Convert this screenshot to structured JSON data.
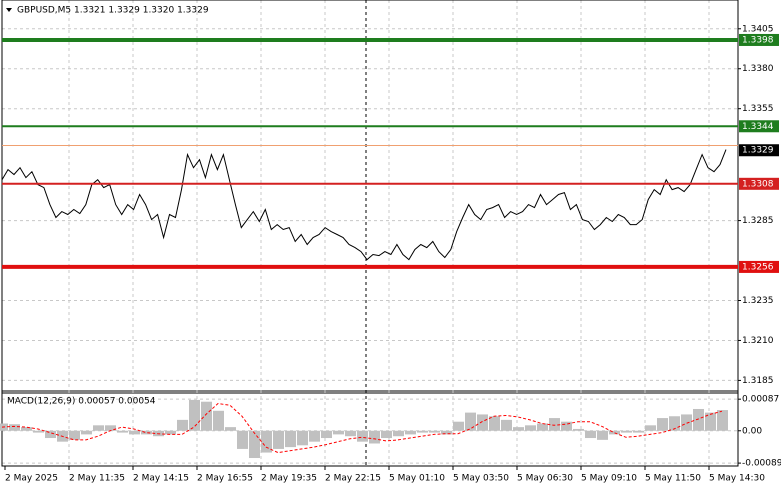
{
  "chart_data": [
    {
      "type": "line",
      "title": "GBPUSD,M5  1.3321 1.3329 1.3320 1.3329",
      "xtick_labels": [
        "2 May 2025",
        "2 May 11:35",
        "2 May 14:15",
        "2 May 16:55",
        "2 May 19:35",
        "2 May 22:15",
        "5 May 01:10",
        "5 May 03:50",
        "5 May 06:30",
        "5 May 09:10",
        "5 May 11:50",
        "5 May 14:30"
      ],
      "color": "#000000",
      "values": [
        1.33106,
        1.33169,
        1.33138,
        1.33181,
        1.33119,
        1.33156,
        1.33075,
        1.33056,
        1.3295,
        1.32869,
        1.32906,
        1.32888,
        1.32919,
        1.32894,
        1.3295,
        1.33075,
        1.33106,
        1.33056,
        1.33075,
        1.3295,
        1.32888,
        1.3295,
        1.32919,
        1.33013,
        1.3295,
        1.32856,
        1.32888,
        1.32744,
        1.32888,
        1.32869,
        1.33044,
        1.33263,
        1.33181,
        1.33231,
        1.33119,
        1.33263,
        1.33169,
        1.33263,
        1.33106,
        1.3295,
        1.32806,
        1.32856,
        1.32906,
        1.32844,
        1.32919,
        1.32794,
        1.32825,
        1.32794,
        1.32806,
        1.32719,
        1.32763,
        1.327,
        1.32744,
        1.32763,
        1.32806,
        1.32781,
        1.32763,
        1.32744,
        1.327,
        1.32681,
        1.32656,
        1.32606,
        1.32638,
        1.32631,
        1.32656,
        1.32638,
        1.327,
        1.32638,
        1.32606,
        1.32669,
        1.327,
        1.32681,
        1.32719,
        1.32656,
        1.32619,
        1.32669,
        1.32781,
        1.32869,
        1.3295,
        1.32888,
        1.32856,
        1.32919,
        1.32931,
        1.3295,
        1.32869,
        1.32906,
        1.32888,
        1.32906,
        1.3295,
        1.32931,
        1.33013,
        1.3295,
        1.32981,
        1.33013,
        1.33025,
        1.32919,
        1.3295,
        1.32856,
        1.32844,
        1.32794,
        1.32825,
        1.32869,
        1.32844,
        1.32888,
        1.32869,
        1.32825,
        1.32825,
        1.32856,
        1.32981,
        1.33044,
        1.33013,
        1.33106,
        1.33044,
        1.33056,
        1.33031,
        1.33075,
        1.33169,
        1.33263,
        1.33181,
        1.33156,
        1.332,
        1.33294
      ],
      "levels": [
        {
          "value": 1.3398,
          "color": "#1e7d1e"
        },
        {
          "value": 1.3344,
          "color": "#1e7d1e"
        },
        {
          "value": 1.3308,
          "color": "#d42020"
        },
        {
          "value": 1.3256,
          "color": "#e01010"
        }
      ],
      "ask_line": {
        "value": 1.3332,
        "color": "#f0a070"
      },
      "last_price": 1.3329,
      "ylim": [
        1.3179,
        1.3423
      ],
      "yticks": [
        1.3405,
        {
          "value": 1.338,
          "label": "1.3380"
        },
        1.3355,
        1.3285,
        1.3235,
        {
          "value": 1.321,
          "label": "1.3210"
        },
        1.3185
      ],
      "grid": true
    },
    {
      "type": "macd",
      "title": "MACD(12,26,9)  0.00057 0.00054",
      "series": [
        {
          "color": "#c0c0c0",
          "values": [
            0.0002,
            0.00018,
            0.0001,
            -5e-05,
            -0.0002,
            -0.0003,
            -0.00025,
            -0.0001,
            0.00015,
            0.00015,
            -5e-05,
            -0.0001,
            -0.0001,
            -0.00015,
            -0.0001,
            0.0003,
            0.00085,
            0.0008,
            0.00055,
            0.0001,
            -0.0005,
            -0.00075,
            -0.0006,
            -0.0005,
            -0.00045,
            -0.0004,
            -0.0003,
            -0.0002,
            -0.0001,
            -0.00015,
            -0.0003,
            -0.00035,
            -0.0002,
            -0.00015,
            -0.0001,
            -5e-05,
            -5e-05,
            -0.0001,
            0.00025,
            0.0005,
            0.00045,
            0.0004,
            0.0003,
            0.0001,
            0.00015,
            0.0002,
            0.00035,
            0.00025,
            5e-05,
            -0.0002,
            -0.00025,
            -0.0001,
            -5e-05,
            -5e-05,
            0.00015,
            0.00035,
            0.0004,
            0.00045,
            0.0006,
            0.0005,
            0.00057
          ]
        },
        {
          "color": "#ff0000",
          "values": [
            0.0001,
            0.00012,
            0.0001,
            5e-05,
            -5e-05,
            -0.00015,
            -0.00025,
            -0.00025,
            -0.00015,
            0,
            0.0001,
            5e-05,
            -5e-05,
            -8e-05,
            -0.0001,
            -0.0001,
            0.0001,
            0.00045,
            0.00075,
            0.0007,
            0.0004,
            -5e-05,
            -0.00045,
            -0.0006,
            -0.00055,
            -0.0005,
            -0.00045,
            -0.00038,
            -0.0003,
            -0.00022,
            -0.00018,
            -0.00022,
            -0.00028,
            -0.00025,
            -0.0002,
            -0.00015,
            -0.0001,
            -8e-05,
            -8e-05,
            5e-05,
            0.00025,
            0.0004,
            0.00042,
            0.00038,
            0.0003,
            0.0002,
            0.00015,
            0.00018,
            0.00025,
            0.00025,
            0.00012,
            -5e-05,
            -0.00018,
            -0.00015,
            -0.0001,
            -5e-05,
            5e-05,
            0.0002,
            0.00032,
            0.00045,
            0.00054
          ]
        }
      ],
      "ylim": [
        -0.00097,
        0.00104
      ],
      "yticks": [
        0.00087,
        {
          "value": 0,
          "label": "0.00"
        },
        -0.00089
      ],
      "grid": true
    }
  ]
}
